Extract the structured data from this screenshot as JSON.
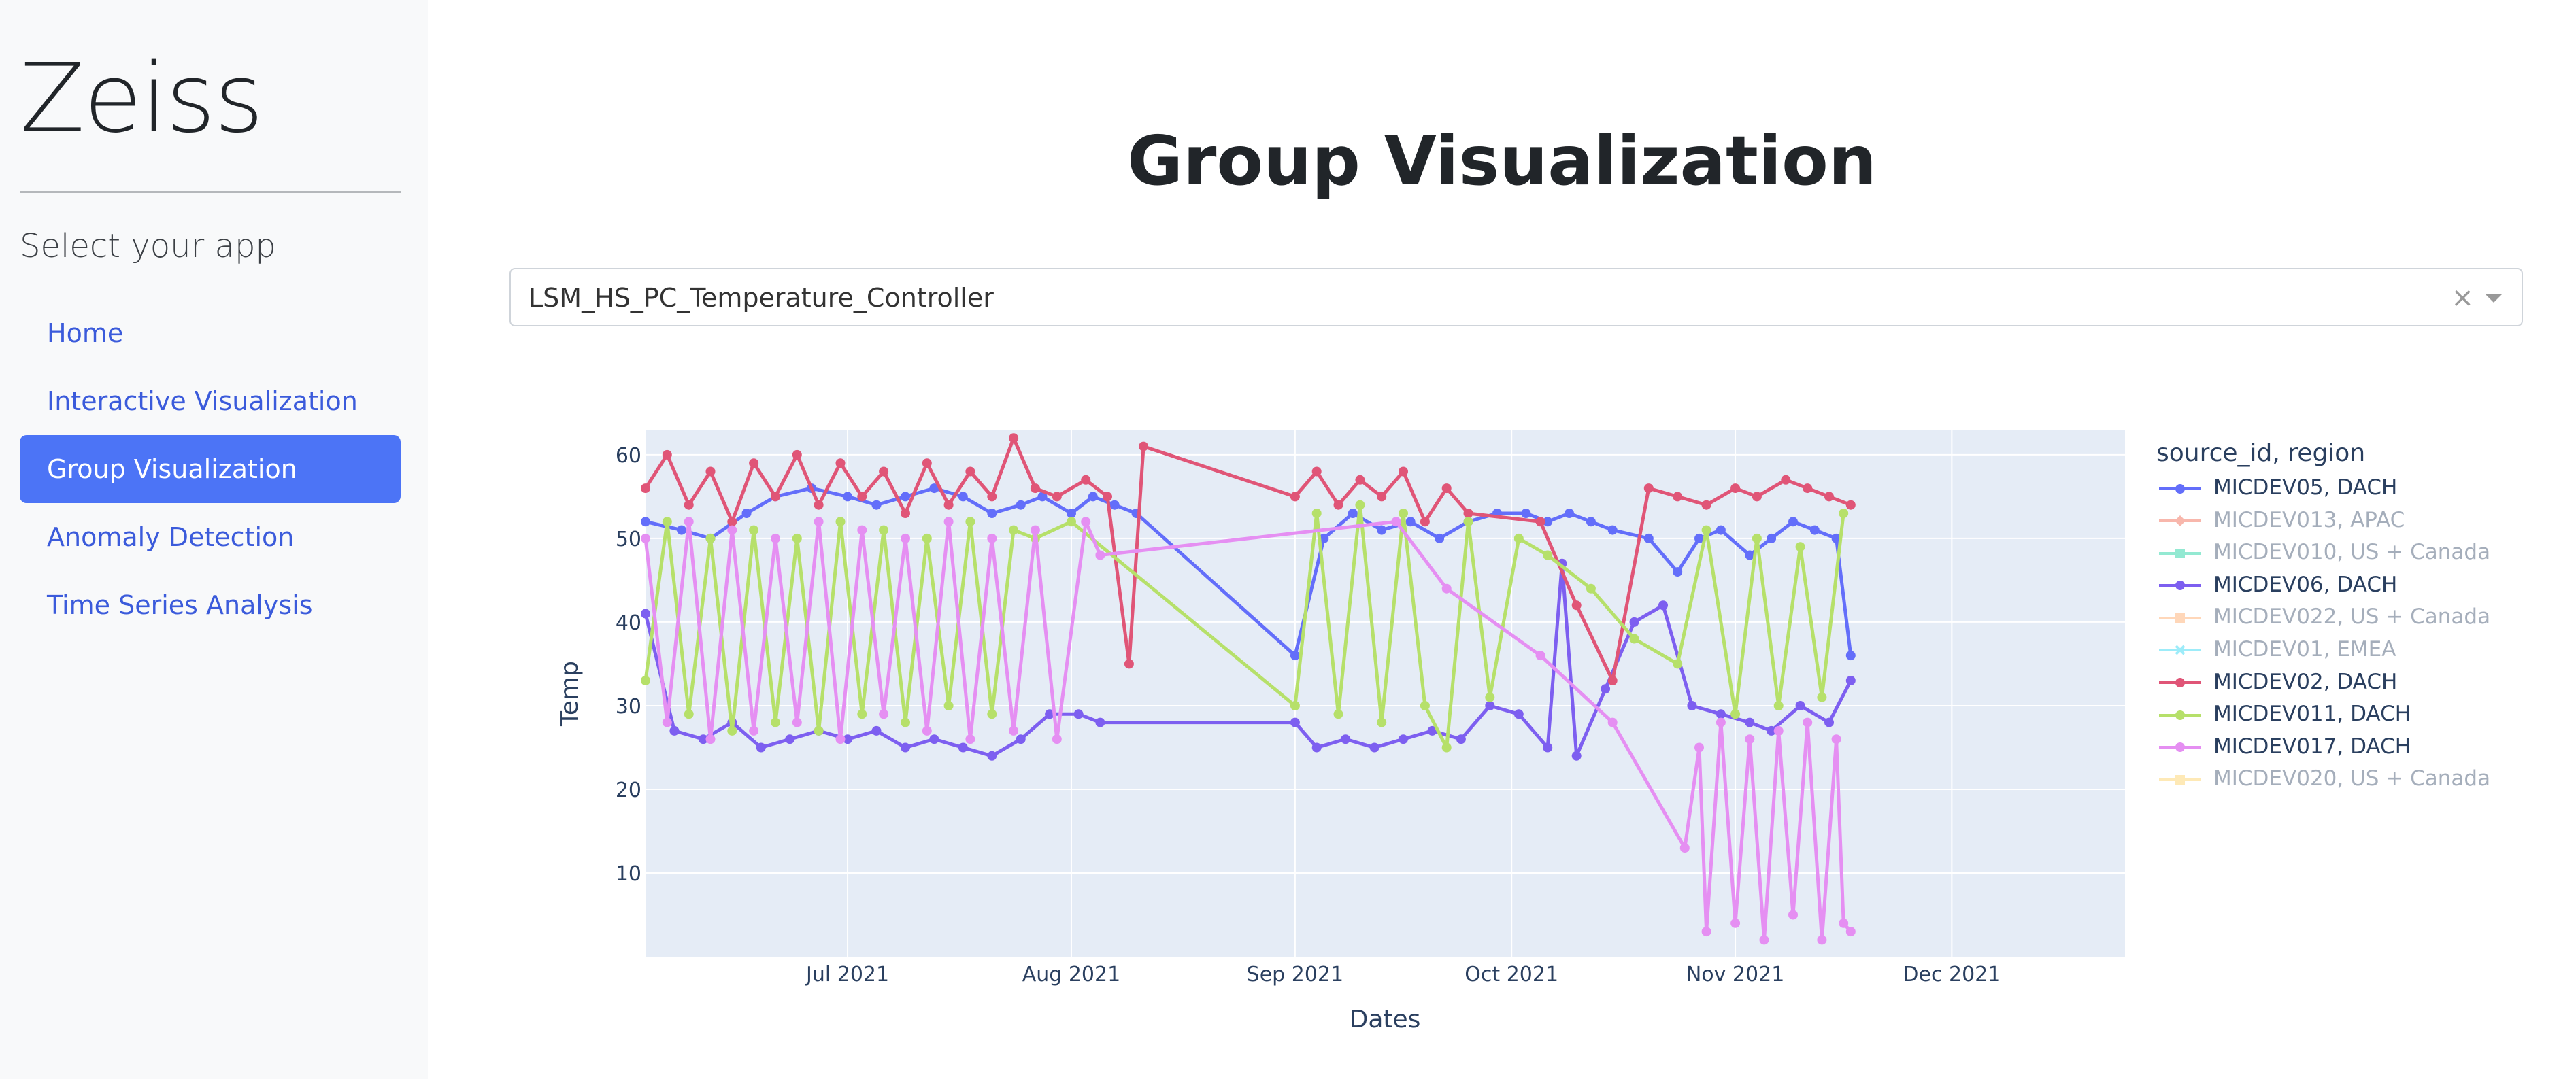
{
  "sidebar": {
    "brand": "Zeiss",
    "subtitle": "Select your app",
    "items": [
      {
        "label": "Home",
        "active": false
      },
      {
        "label": "Interactive Visualization",
        "active": false
      },
      {
        "label": "Group Visualization",
        "active": true
      },
      {
        "label": "Anomaly Detection",
        "active": false
      },
      {
        "label": "Time Series Analysis",
        "active": false
      }
    ]
  },
  "main": {
    "title": "Group Visualization",
    "dropdown": {
      "value": "LSM_HS_PC_Temperature_Controller",
      "clear_icon": "×"
    }
  },
  "colors": {
    "accent": "#4c74f6",
    "link": "#3b5bdb",
    "plot_bg": "#e5ecf6"
  },
  "chart_data": {
    "type": "line",
    "xlabel": "Dates",
    "ylabel": "Temp",
    "x_range": [
      "2021-06-03",
      "2021-12-25"
    ],
    "y_range": [
      0,
      63
    ],
    "x_ticks": [
      "Jul 2021",
      "Aug 2021",
      "Sep 2021",
      "Oct 2021",
      "Nov 2021",
      "Dec 2021"
    ],
    "x_tick_dates": [
      "2021-07-01",
      "2021-08-01",
      "2021-09-01",
      "2021-10-01",
      "2021-11-01",
      "2021-12-01"
    ],
    "y_ticks": [
      10,
      20,
      30,
      40,
      50,
      60
    ],
    "grid": true,
    "legend_title": "source_id, region",
    "legend_placement": "right",
    "series": [
      {
        "name": "MICDEV05, DACH",
        "color": "#636efa",
        "marker": "circle",
        "visible": true,
        "points": [
          [
            "2021-06-03",
            52
          ],
          [
            "2021-06-08",
            51
          ],
          [
            "2021-06-12",
            50
          ],
          [
            "2021-06-17",
            53
          ],
          [
            "2021-06-21",
            55
          ],
          [
            "2021-06-26",
            56
          ],
          [
            "2021-07-01",
            55
          ],
          [
            "2021-07-05",
            54
          ],
          [
            "2021-07-09",
            55
          ],
          [
            "2021-07-13",
            56
          ],
          [
            "2021-07-17",
            55
          ],
          [
            "2021-07-21",
            53
          ],
          [
            "2021-07-25",
            54
          ],
          [
            "2021-07-28",
            55
          ],
          [
            "2021-08-01",
            53
          ],
          [
            "2021-08-04",
            55
          ],
          [
            "2021-08-07",
            54
          ],
          [
            "2021-08-10",
            53
          ],
          [
            "2021-09-01",
            36
          ],
          [
            "2021-09-05",
            50
          ],
          [
            "2021-09-09",
            53
          ],
          [
            "2021-09-13",
            51
          ],
          [
            "2021-09-17",
            52
          ],
          [
            "2021-09-21",
            50
          ],
          [
            "2021-09-25",
            52
          ],
          [
            "2021-09-29",
            53
          ],
          [
            "2021-10-03",
            53
          ],
          [
            "2021-10-06",
            52
          ],
          [
            "2021-10-09",
            53
          ],
          [
            "2021-10-12",
            52
          ],
          [
            "2021-10-15",
            51
          ],
          [
            "2021-10-20",
            50
          ],
          [
            "2021-10-24",
            46
          ],
          [
            "2021-10-27",
            50
          ],
          [
            "2021-10-30",
            51
          ],
          [
            "2021-11-03",
            48
          ],
          [
            "2021-11-06",
            50
          ],
          [
            "2021-11-09",
            52
          ],
          [
            "2021-11-12",
            51
          ],
          [
            "2021-11-15",
            50
          ],
          [
            "2021-11-17",
            36
          ]
        ]
      },
      {
        "name": "MICDEV013, APAC",
        "color": "#ef553b",
        "marker": "diamond",
        "visible": false,
        "points": []
      },
      {
        "name": "MICDEV010, US + Canada",
        "color": "#00cc96",
        "marker": "square",
        "visible": false,
        "points": []
      },
      {
        "name": "MICDEV06, DACH",
        "color": "#7d5ff0",
        "marker": "circle",
        "visible": true,
        "points": [
          [
            "2021-06-03",
            41
          ],
          [
            "2021-06-07",
            27
          ],
          [
            "2021-06-11",
            26
          ],
          [
            "2021-06-15",
            28
          ],
          [
            "2021-06-19",
            25
          ],
          [
            "2021-06-23",
            26
          ],
          [
            "2021-06-27",
            27
          ],
          [
            "2021-07-01",
            26
          ],
          [
            "2021-07-05",
            27
          ],
          [
            "2021-07-09",
            25
          ],
          [
            "2021-07-13",
            26
          ],
          [
            "2021-07-17",
            25
          ],
          [
            "2021-07-21",
            24
          ],
          [
            "2021-07-25",
            26
          ],
          [
            "2021-07-29",
            29
          ],
          [
            "2021-08-02",
            29
          ],
          [
            "2021-08-05",
            28
          ],
          [
            "2021-09-01",
            28
          ],
          [
            "2021-09-04",
            25
          ],
          [
            "2021-09-08",
            26
          ],
          [
            "2021-09-12",
            25
          ],
          [
            "2021-09-16",
            26
          ],
          [
            "2021-09-20",
            27
          ],
          [
            "2021-09-24",
            26
          ],
          [
            "2021-09-28",
            30
          ],
          [
            "2021-10-02",
            29
          ],
          [
            "2021-10-06",
            25
          ],
          [
            "2021-10-08",
            47
          ],
          [
            "2021-10-10",
            24
          ],
          [
            "2021-10-14",
            32
          ],
          [
            "2021-10-18",
            40
          ],
          [
            "2021-10-22",
            42
          ],
          [
            "2021-10-26",
            30
          ],
          [
            "2021-10-30",
            29
          ],
          [
            "2021-11-03",
            28
          ],
          [
            "2021-11-06",
            27
          ],
          [
            "2021-11-10",
            30
          ],
          [
            "2021-11-14",
            28
          ],
          [
            "2021-11-17",
            33
          ]
        ]
      },
      {
        "name": "MICDEV022, US + Canada",
        "color": "#ffa15a",
        "marker": "square",
        "visible": false,
        "points": []
      },
      {
        "name": "MICDEV01, EMEA",
        "color": "#19d3f3",
        "marker": "x",
        "visible": false,
        "points": []
      },
      {
        "name": "MICDEV02, DACH",
        "color": "#e05577",
        "marker": "circle",
        "visible": true,
        "points": [
          [
            "2021-06-03",
            56
          ],
          [
            "2021-06-06",
            60
          ],
          [
            "2021-06-09",
            54
          ],
          [
            "2021-06-12",
            58
          ],
          [
            "2021-06-15",
            52
          ],
          [
            "2021-06-18",
            59
          ],
          [
            "2021-06-21",
            55
          ],
          [
            "2021-06-24",
            60
          ],
          [
            "2021-06-27",
            54
          ],
          [
            "2021-06-30",
            59
          ],
          [
            "2021-07-03",
            55
          ],
          [
            "2021-07-06",
            58
          ],
          [
            "2021-07-09",
            53
          ],
          [
            "2021-07-12",
            59
          ],
          [
            "2021-07-15",
            54
          ],
          [
            "2021-07-18",
            58
          ],
          [
            "2021-07-21",
            55
          ],
          [
            "2021-07-24",
            62
          ],
          [
            "2021-07-27",
            56
          ],
          [
            "2021-07-30",
            55
          ],
          [
            "2021-08-03",
            57
          ],
          [
            "2021-08-06",
            55
          ],
          [
            "2021-08-09",
            35
          ],
          [
            "2021-08-11",
            61
          ],
          [
            "2021-09-01",
            55
          ],
          [
            "2021-09-04",
            58
          ],
          [
            "2021-09-07",
            54
          ],
          [
            "2021-09-10",
            57
          ],
          [
            "2021-09-13",
            55
          ],
          [
            "2021-09-16",
            58
          ],
          [
            "2021-09-19",
            52
          ],
          [
            "2021-09-22",
            56
          ],
          [
            "2021-09-25",
            53
          ],
          [
            "2021-10-05",
            52
          ],
          [
            "2021-10-10",
            42
          ],
          [
            "2021-10-15",
            33
          ],
          [
            "2021-10-20",
            56
          ],
          [
            "2021-10-24",
            55
          ],
          [
            "2021-10-28",
            54
          ],
          [
            "2021-11-01",
            56
          ],
          [
            "2021-11-04",
            55
          ],
          [
            "2021-11-08",
            57
          ],
          [
            "2021-11-11",
            56
          ],
          [
            "2021-11-14",
            55
          ],
          [
            "2021-11-17",
            54
          ]
        ]
      },
      {
        "name": "MICDEV011, DACH",
        "color": "#b6e06a",
        "marker": "circle",
        "visible": true,
        "points": [
          [
            "2021-06-03",
            33
          ],
          [
            "2021-06-06",
            52
          ],
          [
            "2021-06-09",
            29
          ],
          [
            "2021-06-12",
            50
          ],
          [
            "2021-06-15",
            27
          ],
          [
            "2021-06-18",
            51
          ],
          [
            "2021-06-21",
            28
          ],
          [
            "2021-06-24",
            50
          ],
          [
            "2021-06-27",
            27
          ],
          [
            "2021-06-30",
            52
          ],
          [
            "2021-07-03",
            29
          ],
          [
            "2021-07-06",
            51
          ],
          [
            "2021-07-09",
            28
          ],
          [
            "2021-07-12",
            50
          ],
          [
            "2021-07-15",
            30
          ],
          [
            "2021-07-18",
            52
          ],
          [
            "2021-07-21",
            29
          ],
          [
            "2021-07-24",
            51
          ],
          [
            "2021-07-27",
            50
          ],
          [
            "2021-08-01",
            52
          ],
          [
            "2021-09-01",
            30
          ],
          [
            "2021-09-04",
            53
          ],
          [
            "2021-09-07",
            29
          ],
          [
            "2021-09-10",
            54
          ],
          [
            "2021-09-13",
            28
          ],
          [
            "2021-09-16",
            53
          ],
          [
            "2021-09-19",
            30
          ],
          [
            "2021-09-22",
            25
          ],
          [
            "2021-09-25",
            52
          ],
          [
            "2021-09-28",
            31
          ],
          [
            "2021-10-02",
            50
          ],
          [
            "2021-10-06",
            48
          ],
          [
            "2021-10-12",
            44
          ],
          [
            "2021-10-18",
            38
          ],
          [
            "2021-10-24",
            35
          ],
          [
            "2021-10-28",
            51
          ],
          [
            "2021-11-01",
            29
          ],
          [
            "2021-11-04",
            50
          ],
          [
            "2021-11-07",
            30
          ],
          [
            "2021-11-10",
            49
          ],
          [
            "2021-11-13",
            31
          ],
          [
            "2021-11-16",
            53
          ]
        ]
      },
      {
        "name": "MICDEV017, DACH",
        "color": "#e58ff2",
        "marker": "circle",
        "visible": true,
        "points": [
          [
            "2021-06-03",
            50
          ],
          [
            "2021-06-06",
            28
          ],
          [
            "2021-06-09",
            52
          ],
          [
            "2021-06-12",
            26
          ],
          [
            "2021-06-15",
            51
          ],
          [
            "2021-06-18",
            27
          ],
          [
            "2021-06-21",
            50
          ],
          [
            "2021-06-24",
            28
          ],
          [
            "2021-06-27",
            52
          ],
          [
            "2021-06-30",
            26
          ],
          [
            "2021-07-03",
            51
          ],
          [
            "2021-07-06",
            29
          ],
          [
            "2021-07-09",
            50
          ],
          [
            "2021-07-12",
            27
          ],
          [
            "2021-07-15",
            52
          ],
          [
            "2021-07-18",
            26
          ],
          [
            "2021-07-21",
            50
          ],
          [
            "2021-07-24",
            27
          ],
          [
            "2021-07-27",
            51
          ],
          [
            "2021-07-30",
            26
          ],
          [
            "2021-08-03",
            52
          ],
          [
            "2021-08-05",
            48
          ],
          [
            "2021-09-15",
            52
          ],
          [
            "2021-09-22",
            44
          ],
          [
            "2021-10-05",
            36
          ],
          [
            "2021-10-15",
            28
          ],
          [
            "2021-10-25",
            13
          ],
          [
            "2021-10-27",
            25
          ],
          [
            "2021-10-28",
            3
          ],
          [
            "2021-10-30",
            28
          ],
          [
            "2021-11-01",
            4
          ],
          [
            "2021-11-03",
            26
          ],
          [
            "2021-11-05",
            2
          ],
          [
            "2021-11-07",
            27
          ],
          [
            "2021-11-09",
            5
          ],
          [
            "2021-11-11",
            28
          ],
          [
            "2021-11-13",
            2
          ],
          [
            "2021-11-15",
            26
          ],
          [
            "2021-11-16",
            4
          ],
          [
            "2021-11-17",
            3
          ]
        ]
      },
      {
        "name": "MICDEV020, US + Canada",
        "color": "#fecb52",
        "marker": "square",
        "visible": false,
        "points": []
      }
    ]
  }
}
